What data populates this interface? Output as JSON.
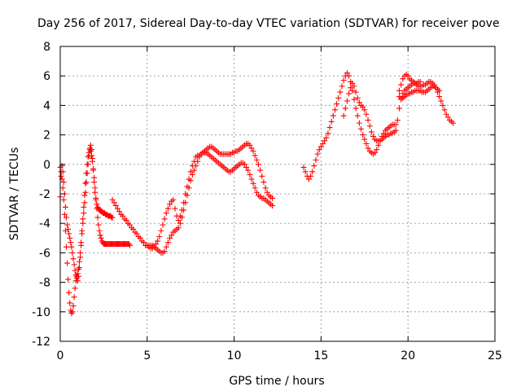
{
  "chart_data": {
    "type": "scatter",
    "title": "Day 256 of 2017, Sidereal Day-to-day VTEC variation (SDTVAR) for receiver pove",
    "xlabel": "GPS time / hours",
    "ylabel": "SDTVAR / TECUs",
    "xlim": [
      0,
      25
    ],
    "ylim": [
      -12,
      8
    ],
    "x_ticks": [
      0,
      5,
      10,
      15,
      20,
      25
    ],
    "y_ticks": [
      -12,
      -10,
      -8,
      -6,
      -4,
      -2,
      0,
      2,
      4,
      6,
      8
    ],
    "grid": true,
    "marker": "plus",
    "color": "#ff0000",
    "series": [
      {
        "x": [
          0.0,
          0.05,
          0.1,
          0.15,
          0.2,
          0.25,
          0.3,
          0.35,
          0.4,
          0.45,
          0.5,
          0.55,
          0.6,
          0.65,
          0.7,
          0.75,
          0.8,
          0.85,
          0.9,
          0.95,
          1.0,
          1.05,
          1.1,
          1.15,
          1.2,
          1.25,
          1.3,
          1.35,
          1.4,
          1.45,
          1.5,
          1.55,
          1.6,
          1.65,
          1.7,
          1.75,
          1.8,
          1.85,
          1.9,
          1.95,
          2.0,
          2.05,
          2.1,
          2.15,
          2.2,
          2.25,
          2.3,
          2.35,
          2.4,
          2.45,
          2.5,
          2.55,
          2.6,
          2.65,
          2.7,
          2.75,
          2.8,
          2.85,
          2.9,
          2.95,
          3.0
        ],
        "y": [
          -2.2,
          -0.8,
          -0.1,
          -0.5,
          -1.2,
          -2.0,
          -2.9,
          -3.6,
          -4.1,
          -4.4,
          -4.7,
          -5.0,
          -5.3,
          -5.6,
          -6.0,
          -6.4,
          -6.8,
          -7.2,
          -7.5,
          -7.7,
          -7.9,
          -7.6,
          -7.0,
          -6.3,
          -5.5,
          -4.7,
          -4.0,
          -3.3,
          -2.6,
          -1.9,
          -1.2,
          -0.6,
          0.0,
          0.6,
          1.1,
          1.3,
          1.0,
          0.4,
          -0.4,
          -1.2,
          -1.9,
          -2.4,
          -2.7,
          -2.9,
          -3.0,
          -3.1,
          -3.1,
          -3.2,
          -3.2,
          -3.3,
          -3.3,
          -3.3,
          -3.4,
          -3.4,
          -3.4,
          -3.5,
          -3.5,
          -3.5,
          -3.5,
          -3.6,
          -3.6
        ]
      },
      {
        "x": [
          0.0,
          0.05,
          0.1,
          0.15,
          0.2,
          0.25,
          0.3,
          0.35,
          0.4,
          0.45,
          0.5,
          0.55,
          0.6,
          0.65,
          0.7,
          0.75,
          0.8,
          0.85,
          0.9,
          0.95,
          1.0,
          1.05,
          1.1,
          1.15,
          1.2,
          1.25,
          1.3,
          1.35,
          1.4,
          1.45,
          1.5,
          1.55,
          1.6,
          1.65,
          1.7,
          1.75,
          1.8,
          1.85,
          1.9,
          1.95,
          2.0,
          2.05,
          2.1,
          2.15,
          2.2,
          2.25,
          2.3,
          2.35,
          2.4,
          2.45,
          2.5,
          2.55,
          2.6,
          2.65,
          2.7,
          2.75,
          2.8,
          2.85,
          2.9,
          2.95,
          3.0,
          3.05,
          3.1,
          3.15,
          3.2,
          3.25,
          3.3,
          3.35,
          3.4,
          3.45,
          3.5,
          3.55,
          3.6,
          3.65,
          3.7,
          3.75,
          3.8,
          3.85,
          3.9,
          3.95,
          4.0
        ],
        "y": [
          -0.2,
          -0.5,
          -1.0,
          -1.6,
          -2.4,
          -3.4,
          -4.5,
          -5.6,
          -6.7,
          -7.8,
          -8.7,
          -9.4,
          -9.9,
          -10.1,
          -10.0,
          -9.6,
          -9.0,
          -8.4,
          -7.9,
          -7.6,
          -7.4,
          -7.1,
          -6.6,
          -6.0,
          -5.3,
          -4.5,
          -3.7,
          -2.9,
          -2.1,
          -1.3,
          -0.6,
          0.0,
          0.5,
          0.8,
          1.0,
          0.9,
          0.6,
          0.2,
          -0.3,
          -0.9,
          -1.6,
          -2.3,
          -3.0,
          -3.6,
          -4.1,
          -4.5,
          -4.8,
          -5.0,
          -5.2,
          -5.3,
          -5.4,
          -5.4,
          -5.4,
          -5.4,
          -5.4,
          -5.4,
          -5.4,
          -5.4,
          -5.4,
          -5.4,
          -5.4,
          -5.4,
          -5.4,
          -5.4,
          -5.4,
          -5.4,
          -5.4,
          -5.4,
          -5.4,
          -5.4,
          -5.4,
          -5.4,
          -5.4,
          -5.4,
          -5.4,
          -5.4,
          -5.4,
          -5.4,
          -5.4,
          -5.4,
          -5.5
        ]
      },
      {
        "x": [
          5.0,
          5.1,
          5.2,
          5.3,
          5.4,
          5.5,
          5.6,
          5.7,
          5.8,
          5.9,
          6.0,
          6.1,
          6.2,
          6.3,
          6.4,
          6.5,
          6.6,
          6.7,
          6.8,
          6.9,
          7.0,
          7.1,
          7.2,
          7.3,
          7.4,
          7.5,
          7.6,
          7.7,
          7.8,
          7.9,
          8.0,
          8.1,
          8.2,
          8.3,
          8.4,
          8.5,
          8.6,
          8.7,
          8.8,
          8.9,
          9.0,
          9.1,
          9.2,
          9.3,
          9.4,
          9.5,
          9.6,
          9.7,
          9.8,
          9.9,
          10.0,
          10.1,
          10.2,
          10.3,
          10.4,
          10.5,
          10.6,
          10.7,
          10.8,
          10.9,
          11.0,
          11.1,
          11.2,
          11.3,
          11.4,
          11.5,
          11.6,
          11.7,
          11.8,
          11.9,
          12.0,
          12.1,
          12.2
        ],
        "y": [
          -5.5,
          -5.5,
          -5.5,
          -5.5,
          -5.6,
          -5.7,
          -5.8,
          -5.9,
          -6.0,
          -6.0,
          -5.9,
          -5.6,
          -5.3,
          -5.0,
          -4.8,
          -4.6,
          -4.5,
          -4.4,
          -4.3,
          -4.0,
          -3.6,
          -3.1,
          -2.6,
          -2.1,
          -1.6,
          -1.1,
          -0.7,
          -0.4,
          -0.1,
          0.2,
          0.5,
          0.7,
          0.8,
          0.8,
          0.8,
          0.7,
          0.6,
          0.5,
          0.4,
          0.3,
          0.2,
          0.1,
          0.0,
          -0.1,
          -0.2,
          -0.3,
          -0.4,
          -0.5,
          -0.5,
          -0.4,
          -0.3,
          -0.2,
          -0.1,
          0.0,
          0.1,
          0.1,
          0.0,
          -0.2,
          -0.4,
          -0.7,
          -1.0,
          -1.3,
          -1.6,
          -1.9,
          -2.1,
          -2.2,
          -2.3,
          -2.3,
          -2.4,
          -2.5,
          -2.6,
          -2.7,
          -2.8
        ]
      },
      {
        "x": [
          3.0,
          3.1,
          3.2,
          3.3,
          3.4,
          3.5,
          3.6,
          3.7,
          3.8,
          3.9,
          4.0,
          4.1,
          4.2,
          4.3,
          4.4,
          4.5,
          4.6,
          4.7,
          4.8,
          4.9,
          5.0,
          5.1,
          5.2,
          5.3,
          5.4,
          5.5,
          5.6,
          5.7,
          5.8,
          5.9,
          6.0,
          6.1,
          6.2,
          6.3,
          6.4,
          6.5,
          6.6,
          6.7,
          6.8,
          6.9,
          7.0,
          7.1,
          7.2,
          7.3,
          7.4,
          7.5,
          7.6,
          7.7,
          7.8,
          7.9,
          8.0,
          8.1,
          8.2,
          8.3,
          8.4,
          8.5,
          8.6,
          8.7,
          8.8,
          8.9,
          9.0,
          9.1,
          9.2,
          9.3,
          9.4,
          9.5,
          9.6,
          9.7,
          9.8,
          9.9,
          10.0,
          10.1,
          10.2,
          10.3,
          10.4,
          10.5,
          10.6,
          10.7,
          10.8,
          10.9,
          11.0,
          11.1,
          11.2,
          11.3,
          11.4,
          11.5,
          11.6,
          11.7,
          11.8,
          11.9,
          12.0,
          12.1,
          12.2
        ],
        "y": [
          -2.4,
          -2.6,
          -2.8,
          -3.0,
          -3.2,
          -3.4,
          -3.5,
          -3.7,
          -3.8,
          -4.0,
          -4.1,
          -4.3,
          -4.4,
          -4.6,
          -4.7,
          -4.9,
          -5.0,
          -5.2,
          -5.3,
          -5.5,
          -5.5,
          -5.6,
          -5.7,
          -5.7,
          -5.6,
          -5.4,
          -5.2,
          -4.9,
          -4.5,
          -4.1,
          -3.7,
          -3.3,
          -3.0,
          -2.7,
          -2.5,
          -2.4,
          -3.0,
          -3.5,
          -3.8,
          -3.5,
          -3.1,
          -2.6,
          -2.0,
          -1.5,
          -1.0,
          -0.5,
          -0.1,
          0.2,
          0.5,
          0.6,
          0.6,
          0.7,
          0.8,
          0.9,
          1.0,
          1.1,
          1.2,
          1.2,
          1.1,
          1.0,
          0.9,
          0.8,
          0.7,
          0.7,
          0.7,
          0.7,
          0.7,
          0.7,
          0.7,
          0.8,
          0.8,
          0.9,
          0.9,
          1.0,
          1.1,
          1.2,
          1.3,
          1.4,
          1.4,
          1.3,
          1.1,
          0.9,
          0.6,
          0.3,
          0.0,
          -0.4,
          -0.8,
          -1.2,
          -1.6,
          -1.9,
          -2.1,
          -2.2,
          -2.3
        ]
      },
      {
        "x": [
          14.0,
          14.1,
          14.2,
          14.3,
          14.4,
          14.5,
          14.6,
          14.7,
          14.8,
          14.9,
          15.0,
          15.1,
          15.2,
          15.3,
          15.4,
          15.5,
          15.6,
          15.7,
          15.8,
          15.9,
          16.0,
          16.1,
          16.2,
          16.3,
          16.4,
          16.5,
          16.6,
          16.7,
          16.8,
          16.9,
          17.0,
          17.1,
          17.2,
          17.3,
          17.4,
          17.5,
          17.6,
          17.7,
          17.8,
          17.9,
          18.0,
          18.1,
          18.2,
          18.3,
          18.4,
          18.5,
          18.6,
          18.7,
          18.8,
          18.9,
          19.0,
          19.1,
          19.2,
          19.3
        ],
        "y": [
          -0.2,
          -0.5,
          -0.8,
          -1.0,
          -0.8,
          -0.5,
          -0.1,
          0.3,
          0.7,
          1.0,
          1.2,
          1.4,
          1.6,
          1.8,
          2.1,
          2.5,
          2.9,
          3.3,
          3.7,
          4.1,
          4.5,
          4.9,
          5.3,
          5.7,
          6.0,
          6.2,
          6.0,
          5.6,
          5.0,
          4.4,
          3.8,
          3.3,
          2.8,
          2.4,
          2.0,
          1.7,
          1.4,
          1.1,
          0.9,
          0.8,
          0.7,
          0.8,
          1.0,
          1.3,
          1.6,
          1.9,
          2.1,
          2.3,
          2.4,
          2.5,
          2.6,
          2.7,
          2.7,
          2.7
        ]
      },
      {
        "x": [
          16.3,
          16.4,
          16.5,
          16.6,
          16.7,
          16.8,
          16.9,
          17.0,
          17.1,
          17.2,
          17.3,
          17.4,
          17.5,
          17.6,
          17.7,
          17.8,
          17.9,
          18.0,
          18.1,
          18.2,
          18.3,
          18.4,
          18.5,
          18.6,
          18.7,
          18.8,
          18.9,
          19.0,
          19.1,
          19.2,
          19.3,
          19.4,
          19.5,
          19.6,
          19.7,
          19.8,
          19.9,
          20.0,
          20.1,
          20.2,
          20.3,
          20.4,
          20.5,
          20.6,
          20.7,
          20.8,
          20.9,
          21.0,
          21.1,
          21.2,
          21.3,
          21.4,
          21.5,
          21.6,
          21.7,
          21.8,
          21.9,
          22.0,
          22.1,
          22.2,
          22.3,
          22.4,
          22.5,
          22.6
        ],
        "y": [
          3.3,
          3.8,
          4.3,
          4.8,
          5.2,
          5.5,
          5.3,
          4.9,
          4.5,
          4.2,
          4.0,
          3.9,
          3.7,
          3.4,
          3.0,
          2.6,
          2.2,
          1.9,
          1.7,
          1.6,
          1.6,
          1.6,
          1.7,
          1.8,
          1.9,
          2.0,
          2.0,
          2.1,
          2.1,
          2.2,
          2.3,
          3.0,
          3.8,
          4.4,
          4.8,
          5.0,
          5.1,
          5.2,
          5.3,
          5.4,
          5.5,
          5.5,
          5.4,
          5.3,
          5.3,
          5.3,
          5.4,
          5.4,
          5.5,
          5.6,
          5.6,
          5.5,
          5.4,
          5.2,
          4.9,
          4.6,
          4.3,
          4.0,
          3.7,
          3.4,
          3.2,
          3.0,
          2.9,
          2.8
        ]
      },
      {
        "x": [
          19.5,
          19.6,
          19.7,
          19.8,
          19.9,
          20.0,
          20.1,
          20.2,
          20.3,
          20.4,
          20.5,
          20.6,
          20.7,
          20.8,
          20.9,
          21.0,
          21.1,
          21.2,
          21.3,
          21.4,
          21.5,
          21.6,
          21.7,
          21.8
        ],
        "y": [
          4.6,
          4.5,
          4.5,
          4.6,
          4.7,
          4.8,
          4.8,
          4.9,
          4.9,
          5.0,
          5.0,
          5.0,
          5.0,
          4.9,
          4.9,
          4.9,
          5.0,
          5.1,
          5.2,
          5.3,
          5.3,
          5.2,
          5.1,
          5.0
        ]
      },
      {
        "x": [
          19.5,
          19.6,
          19.7,
          19.8,
          19.9,
          20.0,
          20.1,
          20.2,
          20.3,
          20.4,
          20.5,
          20.6,
          20.7
        ],
        "y": [
          5.0,
          5.4,
          5.8,
          6.0,
          6.1,
          6.0,
          5.8,
          5.7,
          5.6,
          5.5,
          5.5,
          5.6,
          5.6
        ]
      }
    ]
  }
}
